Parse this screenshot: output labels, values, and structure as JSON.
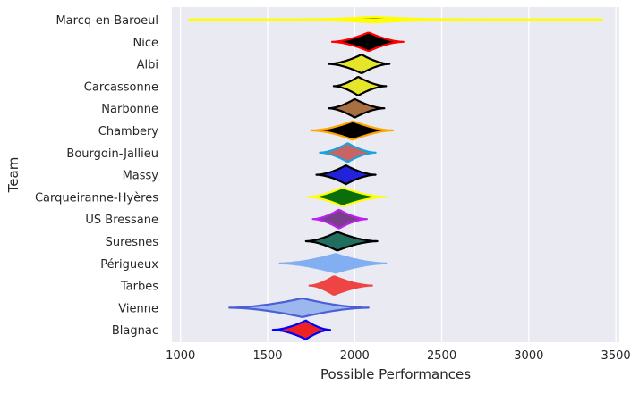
{
  "chart_data": {
    "type": "violin",
    "orientation": "horizontal",
    "xlabel": "Possible Performances",
    "ylabel": "Team",
    "xlim": [
      950,
      3520
    ],
    "xticks": [
      1000,
      1500,
      2000,
      2500,
      3000,
      3500
    ],
    "grid": true,
    "background": "#eaeaf2",
    "teams": [
      {
        "name": "Marcq-en-Baroeul",
        "center": 2100,
        "min": 1050,
        "max": 3420,
        "peak_halfwidth": 0.05,
        "body_halfwidth": 3.5,
        "fill": "#000000",
        "edge": "#ffff00"
      },
      {
        "name": "Nice",
        "center": 2080,
        "min": 1870,
        "max": 2280,
        "peak_halfwidth": 0.42,
        "body_halfwidth": 0.5,
        "fill": "#000000",
        "edge": "#ff0000"
      },
      {
        "name": "Albi",
        "center": 2040,
        "min": 1850,
        "max": 2200,
        "peak_halfwidth": 0.42,
        "body_halfwidth": 0.5,
        "fill": "#e5e52a",
        "edge": "#000000"
      },
      {
        "name": "Carcassonne",
        "center": 2020,
        "min": 1880,
        "max": 2180,
        "peak_halfwidth": 0.42,
        "body_halfwidth": 0.5,
        "fill": "#e5e52a",
        "edge": "#000000"
      },
      {
        "name": "Narbonne",
        "center": 2000,
        "min": 1850,
        "max": 2170,
        "peak_halfwidth": 0.42,
        "body_halfwidth": 0.5,
        "fill": "#a87040",
        "edge": "#000000"
      },
      {
        "name": "Chambery",
        "center": 1990,
        "min": 1750,
        "max": 2220,
        "peak_halfwidth": 0.42,
        "body_halfwidth": 0.5,
        "fill": "#000000",
        "edge": "#ffa500"
      },
      {
        "name": "Bourgoin-Jallieu",
        "center": 1960,
        "min": 1800,
        "max": 2120,
        "peak_halfwidth": 0.42,
        "body_halfwidth": 0.5,
        "fill": "#c86464",
        "edge": "#1aa3d9"
      },
      {
        "name": "Massy",
        "center": 1950,
        "min": 1780,
        "max": 2120,
        "peak_halfwidth": 0.42,
        "body_halfwidth": 0.5,
        "fill": "#2222dd",
        "edge": "#000000"
      },
      {
        "name": "Carqueiranne-Hyères",
        "center": 1930,
        "min": 1730,
        "max": 2180,
        "peak_halfwidth": 0.42,
        "body_halfwidth": 0.5,
        "fill": "#0a6e0a",
        "edge": "#ffff00"
      },
      {
        "name": "US Bressane",
        "center": 1910,
        "min": 1760,
        "max": 2070,
        "peak_halfwidth": 0.42,
        "body_halfwidth": 0.5,
        "fill": "#7a3f8a",
        "edge": "#bb22ee"
      },
      {
        "name": "Suresnes",
        "center": 1900,
        "min": 1720,
        "max": 2130,
        "peak_halfwidth": 0.42,
        "body_halfwidth": 0.5,
        "fill": "#1f6e5e",
        "edge": "#000000"
      },
      {
        "name": "Périgueux",
        "center": 1890,
        "min": 1570,
        "max": 2180,
        "peak_halfwidth": 0.3,
        "body_halfwidth": 0.5,
        "fill": "#82aef2",
        "edge": "#82aef2"
      },
      {
        "name": "Tarbes",
        "center": 1880,
        "min": 1740,
        "max": 2100,
        "peak_halfwidth": 0.42,
        "body_halfwidth": 0.5,
        "fill": "#ee4444",
        "edge": "#ee4444"
      },
      {
        "name": "Vienne",
        "center": 1700,
        "min": 1280,
        "max": 2080,
        "peak_halfwidth": 0.25,
        "body_halfwidth": 0.5,
        "fill": "#9bb7ee",
        "edge": "#4d5fd8"
      },
      {
        "name": "Blagnac",
        "center": 1720,
        "min": 1530,
        "max": 1860,
        "peak_halfwidth": 0.42,
        "body_halfwidth": 0.5,
        "fill": "#ee2222",
        "edge": "#0000ff"
      }
    ]
  }
}
